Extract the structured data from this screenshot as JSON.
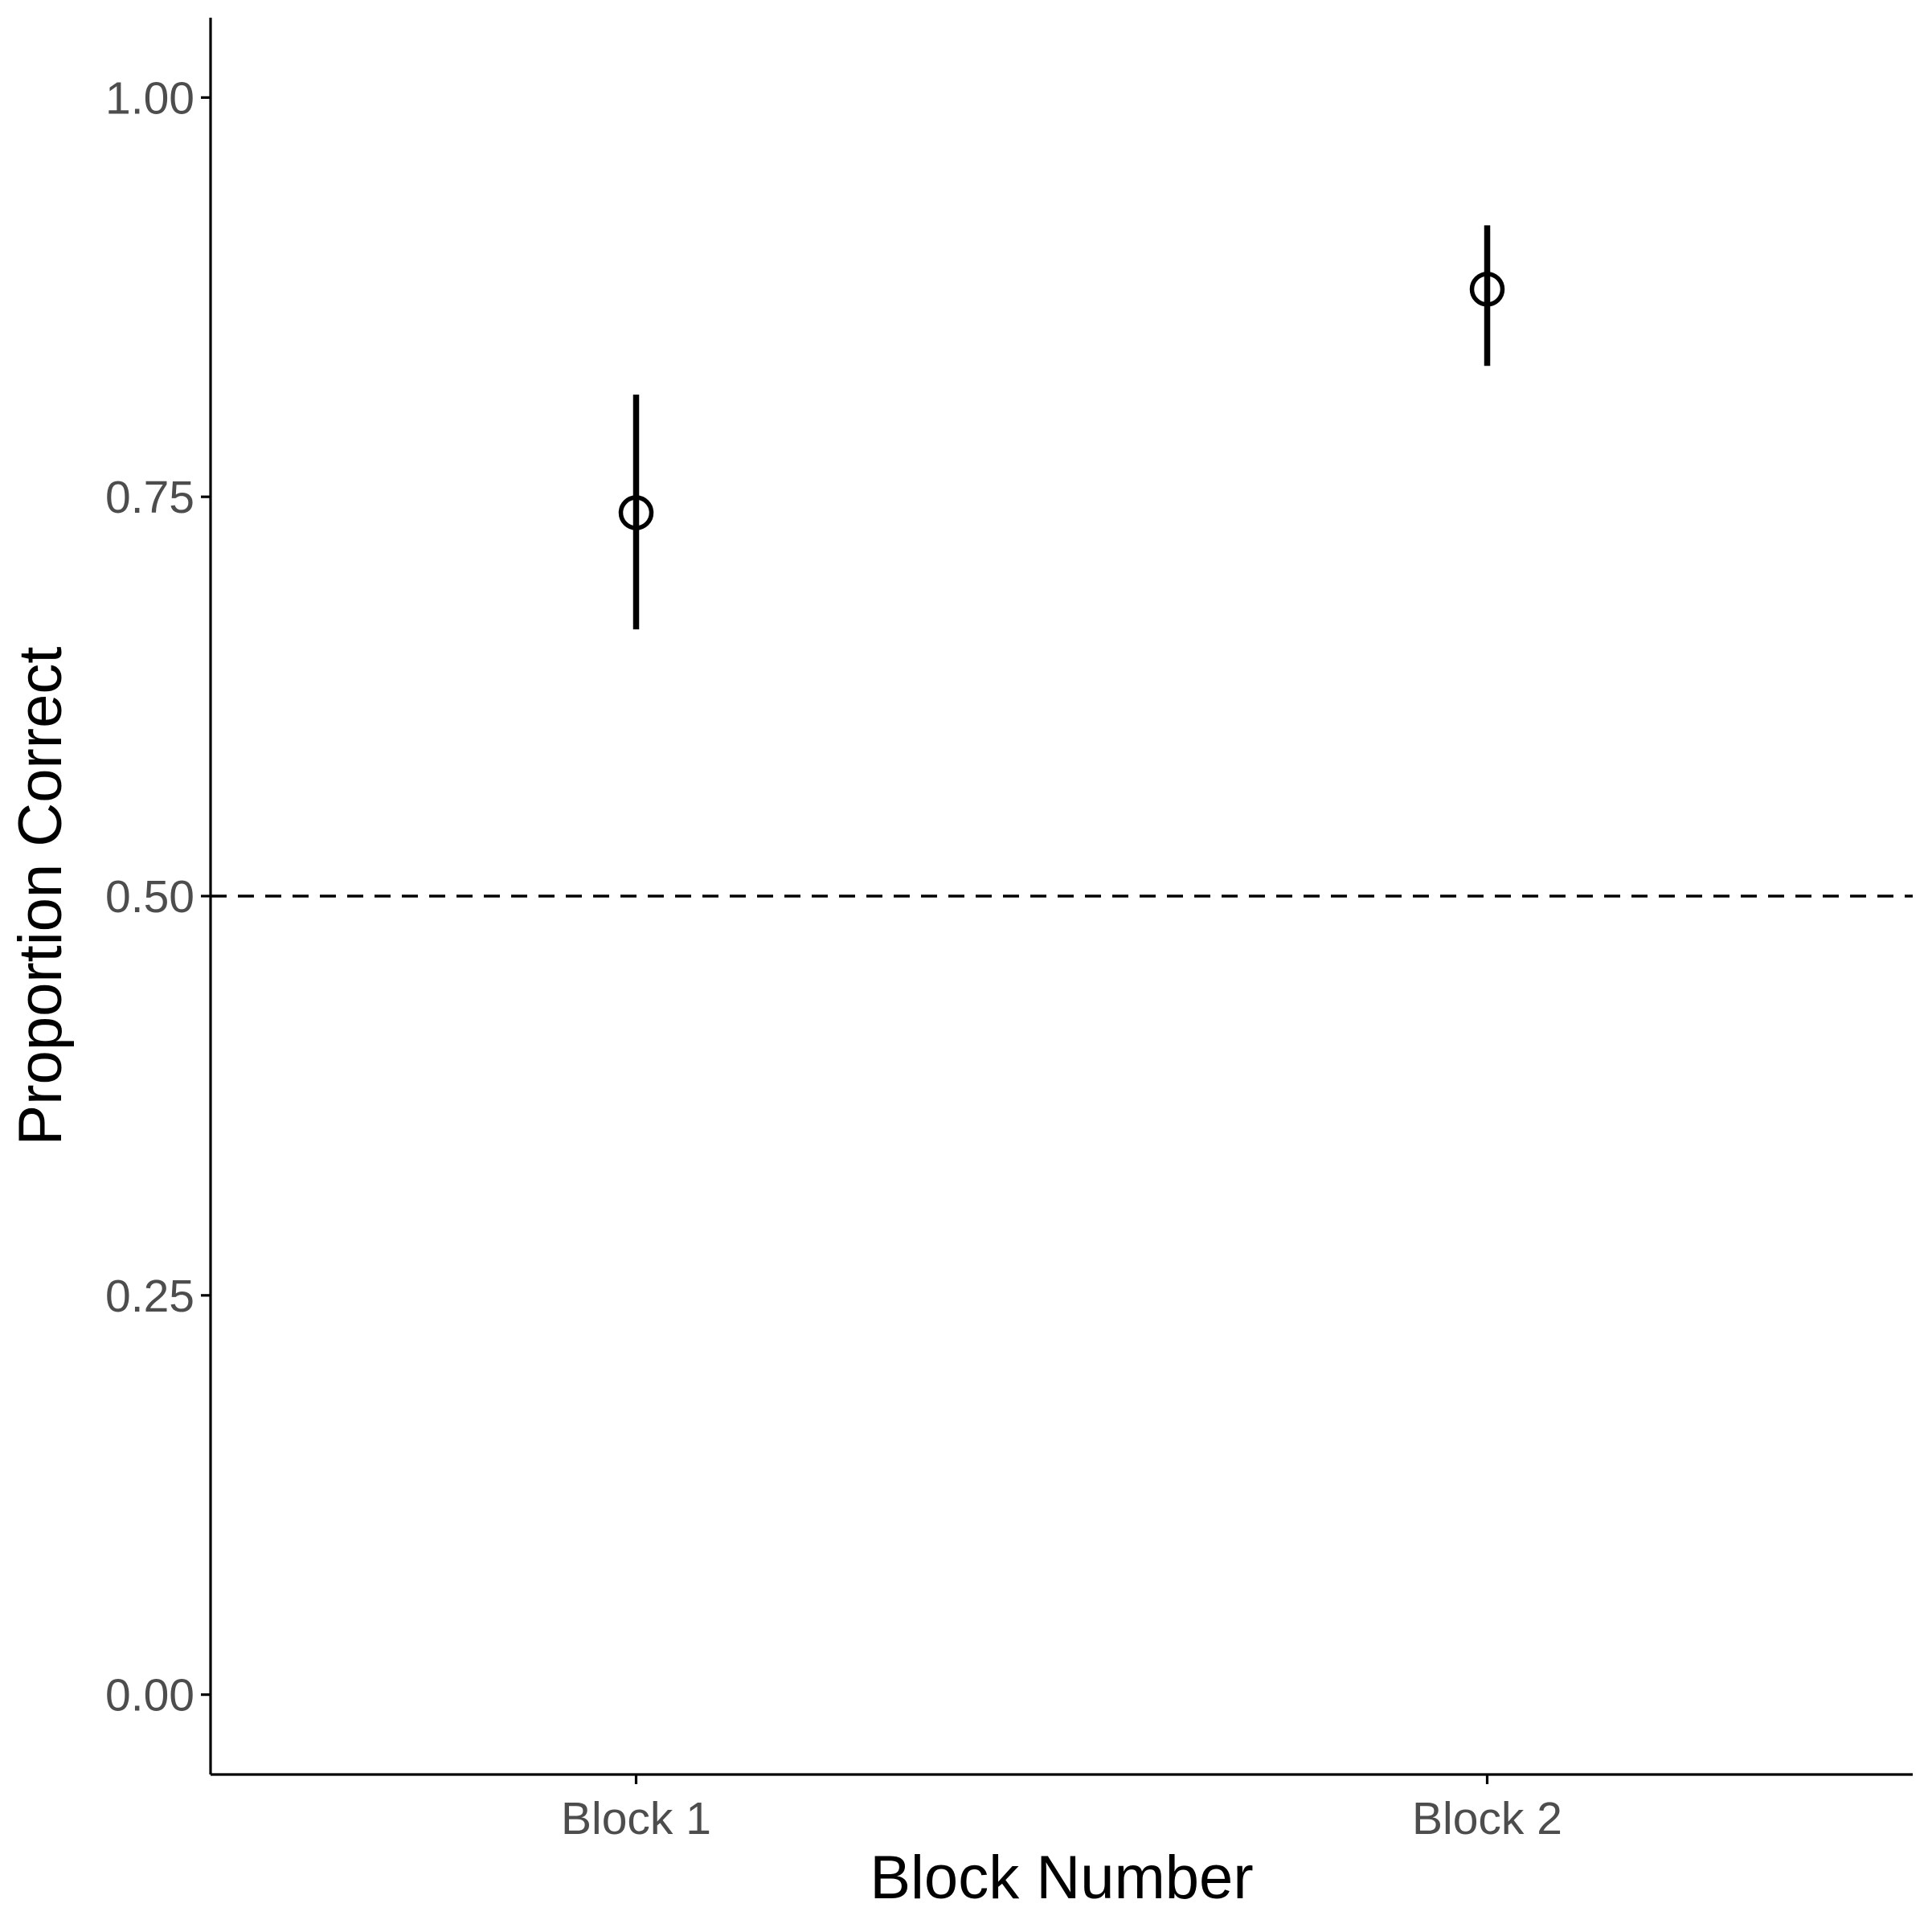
{
  "chart_data": {
    "type": "scatter",
    "title": "",
    "xlabel": "Block Number",
    "ylabel": "Proportion Correct",
    "categories": [
      "Block 1",
      "Block 2"
    ],
    "values": [
      0.74,
      0.88
    ],
    "error_low": [
      0.667,
      0.832
    ],
    "error_high": [
      0.814,
      0.92
    ],
    "ylim": [
      -0.05,
      1.05
    ],
    "yticks": [
      0.0,
      0.25,
      0.5,
      0.75,
      1.0
    ],
    "ytick_labels": [
      "0.00",
      "0.25",
      "0.50",
      "0.75",
      "1.00"
    ],
    "reference_line": {
      "y": 0.5,
      "style": "dashed"
    },
    "grid": false,
    "legend": "none",
    "marker": "open-circle",
    "color": "#000000"
  }
}
